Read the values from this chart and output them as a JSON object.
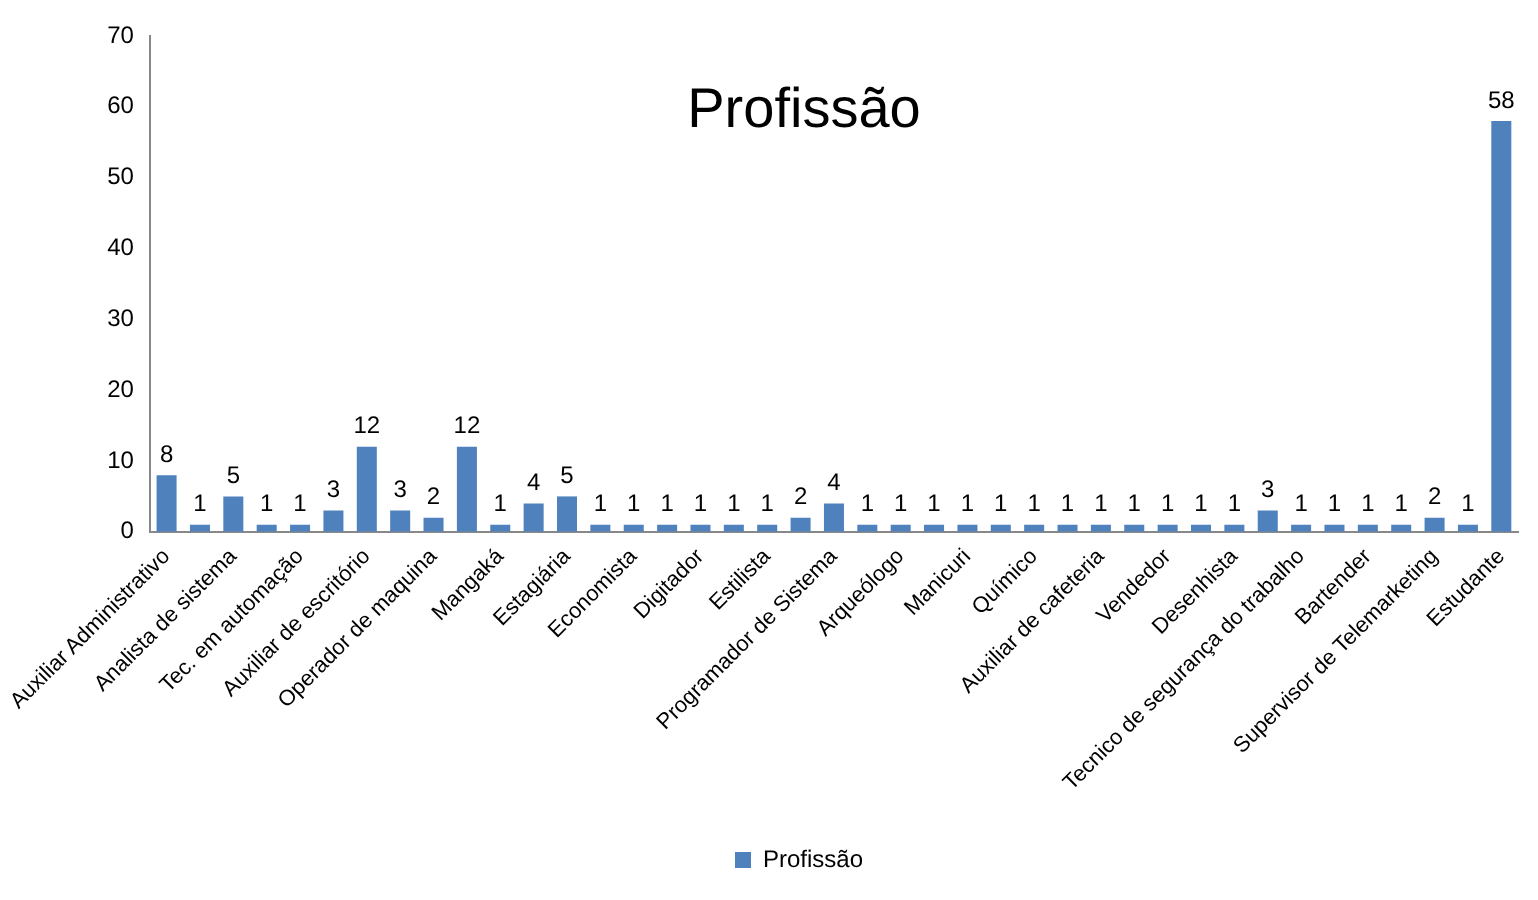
{
  "chart_data": {
    "type": "bar",
    "title": "Profissão",
    "categories": [
      "Auxiliar Administrativo",
      null,
      "Analista de sistema",
      null,
      "Tec. em automação",
      null,
      "Auxiliar de escritório",
      null,
      "Operador de maquina",
      null,
      "Mangaká",
      null,
      "Estagiária",
      null,
      "Economista",
      null,
      "Digitador",
      null,
      "Estilista",
      null,
      "Programador de Sistema",
      null,
      "Arqueólogo",
      null,
      "Manicuri",
      null,
      "Químico",
      null,
      "Auxiliar de cafeteria",
      null,
      "Vendedor",
      null,
      "Desenhista",
      null,
      "Tecnico de segurança do trabalho",
      null,
      "Bartender",
      null,
      "Supervisor de Telemarketing",
      null,
      "Estudante"
    ],
    "series": [
      {
        "name": "Profissão",
        "color": "#4f81bd",
        "values": [
          8,
          1,
          5,
          1,
          1,
          3,
          12,
          3,
          2,
          12,
          1,
          4,
          5,
          1,
          1,
          1,
          1,
          1,
          1,
          2,
          4,
          1,
          1,
          1,
          1,
          1,
          1,
          1,
          1,
          1,
          1,
          1,
          1,
          3,
          1,
          1,
          1,
          1,
          2,
          1,
          58
        ]
      }
    ],
    "ylim": [
      0,
      70
    ],
    "yticks": [
      0,
      10,
      20,
      30,
      40,
      50,
      60,
      70
    ],
    "grid": false,
    "legend": "bottom",
    "data_labels": true
  }
}
